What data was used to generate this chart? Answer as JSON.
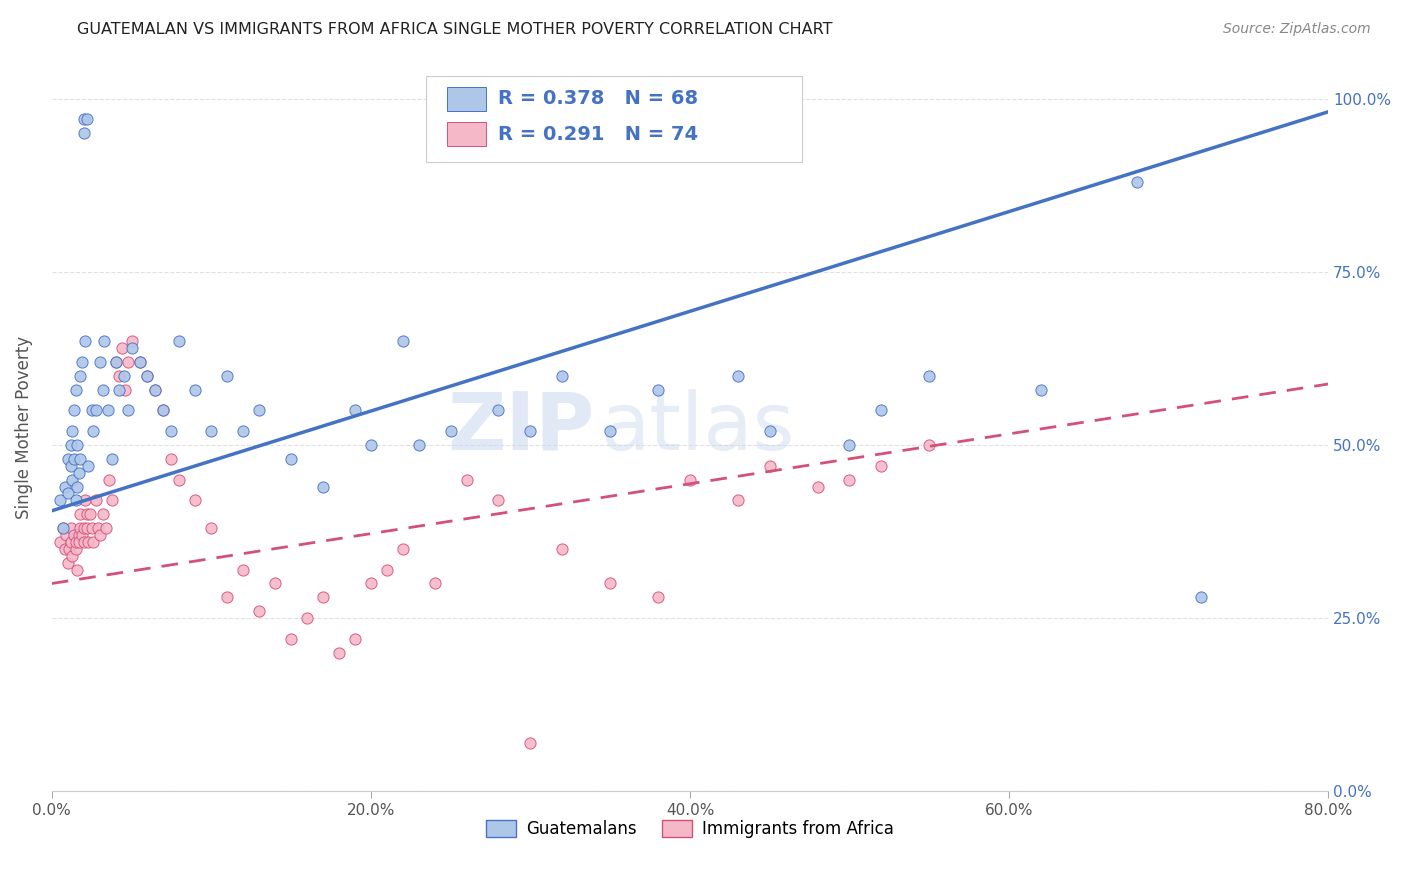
{
  "title": "GUATEMALAN VS IMMIGRANTS FROM AFRICA SINGLE MOTHER POVERTY CORRELATION CHART",
  "source": "Source: ZipAtlas.com",
  "ylabel": "Single Mother Poverty",
  "xmin": 0.0,
  "xmax": 0.8,
  "ymin": 0.0,
  "ymax": 1.05,
  "series1_label": "Guatemalans",
  "series1_R": 0.378,
  "series1_N": 68,
  "series1_color": "#aec6e8",
  "series1_edge": "#4472c4",
  "series1_line_color": "#4472c4",
  "series1_line_intercept": 0.405,
  "series1_line_slope": 0.72,
  "series1_x": [
    0.005,
    0.007,
    0.008,
    0.01,
    0.01,
    0.012,
    0.012,
    0.013,
    0.013,
    0.014,
    0.014,
    0.015,
    0.015,
    0.016,
    0.016,
    0.017,
    0.018,
    0.018,
    0.019,
    0.02,
    0.02,
    0.021,
    0.022,
    0.023,
    0.025,
    0.026,
    0.028,
    0.03,
    0.032,
    0.033,
    0.035,
    0.038,
    0.04,
    0.042,
    0.045,
    0.048,
    0.05,
    0.055,
    0.06,
    0.065,
    0.07,
    0.075,
    0.08,
    0.09,
    0.1,
    0.11,
    0.12,
    0.13,
    0.15,
    0.17,
    0.19,
    0.2,
    0.22,
    0.23,
    0.25,
    0.28,
    0.3,
    0.32,
    0.35,
    0.38,
    0.43,
    0.45,
    0.5,
    0.52,
    0.55,
    0.62,
    0.68,
    0.72
  ],
  "series1_y": [
    0.42,
    0.38,
    0.44,
    0.48,
    0.43,
    0.5,
    0.47,
    0.45,
    0.52,
    0.55,
    0.48,
    0.42,
    0.58,
    0.44,
    0.5,
    0.46,
    0.48,
    0.6,
    0.62,
    0.95,
    0.97,
    0.65,
    0.97,
    0.47,
    0.55,
    0.52,
    0.55,
    0.62,
    0.58,
    0.65,
    0.55,
    0.48,
    0.62,
    0.58,
    0.6,
    0.55,
    0.64,
    0.62,
    0.6,
    0.58,
    0.55,
    0.52,
    0.65,
    0.58,
    0.52,
    0.6,
    0.52,
    0.55,
    0.48,
    0.44,
    0.55,
    0.5,
    0.65,
    0.5,
    0.52,
    0.55,
    0.52,
    0.6,
    0.52,
    0.58,
    0.6,
    0.52,
    0.5,
    0.55,
    0.6,
    0.58,
    0.88,
    0.28
  ],
  "series2_label": "Immigrants from Africa",
  "series2_R": 0.291,
  "series2_N": 74,
  "series2_color": "#f4b8c8",
  "series2_edge": "#d4507a",
  "series2_line_color": "#d4507a",
  "series2_line_intercept": 0.3,
  "series2_line_slope": 0.36,
  "series2_x": [
    0.005,
    0.007,
    0.008,
    0.009,
    0.01,
    0.011,
    0.012,
    0.012,
    0.013,
    0.014,
    0.015,
    0.015,
    0.016,
    0.017,
    0.017,
    0.018,
    0.018,
    0.019,
    0.02,
    0.02,
    0.021,
    0.022,
    0.022,
    0.023,
    0.024,
    0.025,
    0.026,
    0.028,
    0.029,
    0.03,
    0.032,
    0.034,
    0.036,
    0.038,
    0.04,
    0.042,
    0.044,
    0.046,
    0.048,
    0.05,
    0.055,
    0.06,
    0.065,
    0.07,
    0.075,
    0.08,
    0.09,
    0.1,
    0.11,
    0.12,
    0.13,
    0.14,
    0.15,
    0.16,
    0.17,
    0.18,
    0.19,
    0.2,
    0.21,
    0.22,
    0.24,
    0.26,
    0.28,
    0.3,
    0.32,
    0.35,
    0.38,
    0.4,
    0.43,
    0.45,
    0.48,
    0.5,
    0.52,
    0.55
  ],
  "series2_y": [
    0.36,
    0.38,
    0.35,
    0.37,
    0.33,
    0.35,
    0.38,
    0.36,
    0.34,
    0.37,
    0.35,
    0.36,
    0.32,
    0.37,
    0.36,
    0.4,
    0.38,
    0.37,
    0.38,
    0.36,
    0.42,
    0.4,
    0.38,
    0.36,
    0.4,
    0.38,
    0.36,
    0.42,
    0.38,
    0.37,
    0.4,
    0.38,
    0.45,
    0.42,
    0.62,
    0.6,
    0.64,
    0.58,
    0.62,
    0.65,
    0.62,
    0.6,
    0.58,
    0.55,
    0.48,
    0.45,
    0.42,
    0.38,
    0.28,
    0.32,
    0.26,
    0.3,
    0.22,
    0.25,
    0.28,
    0.2,
    0.22,
    0.3,
    0.32,
    0.35,
    0.3,
    0.45,
    0.42,
    0.07,
    0.35,
    0.3,
    0.28,
    0.45,
    0.42,
    0.47,
    0.44,
    0.45,
    0.47,
    0.5
  ],
  "watermark_zip": "ZIP",
  "watermark_atlas": "atlas",
  "background_color": "#ffffff",
  "grid_color": "#e0e0e0",
  "ytick_labels": [
    "0.0%",
    "25.0%",
    "50.0%",
    "75.0%",
    "100.0%"
  ],
  "ytick_values": [
    0.0,
    0.25,
    0.5,
    0.75,
    1.0
  ],
  "xtick_labels": [
    "0.0%",
    "20.0%",
    "40.0%",
    "60.0%",
    "80.0%"
  ],
  "xtick_values": [
    0.0,
    0.2,
    0.4,
    0.6,
    0.8
  ]
}
